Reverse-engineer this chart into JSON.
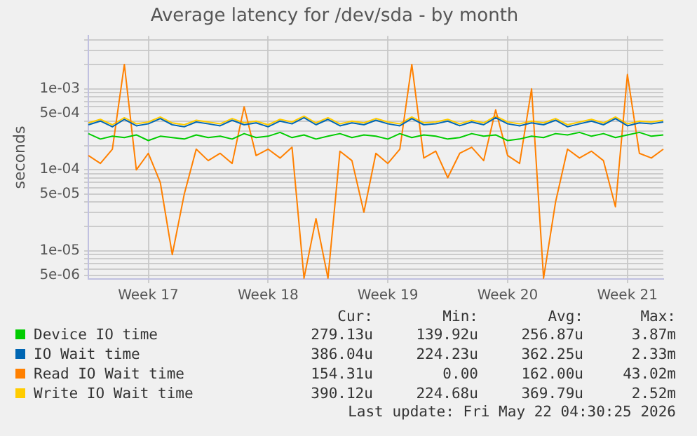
{
  "chart_data": {
    "type": "line",
    "title": "Average latency for /dev/sda - by month",
    "ylabel": "seconds",
    "categories": [
      null,
      null,
      null,
      null,
      null,
      "Week 17",
      null,
      null,
      null,
      null,
      null,
      null,
      null,
      null,
      null,
      "Week 18",
      null,
      null,
      null,
      null,
      null,
      null,
      null,
      null,
      null,
      "Week 19",
      null,
      null,
      null,
      null,
      null,
      null,
      null,
      null,
      null,
      "Week 20",
      null,
      null,
      null,
      null,
      null,
      null,
      null,
      null,
      null,
      "Week 21",
      null,
      null,
      null
    ],
    "series": [
      {
        "name": "Device IO time",
        "color": "#00cc00",
        "values": [
          0.00028,
          0.00024,
          0.00026,
          0.00025,
          0.00027,
          0.00023,
          0.00026,
          0.00025,
          0.00024,
          0.00027,
          0.00025,
          0.00026,
          0.00024,
          0.00028,
          0.00025,
          0.00026,
          0.00029,
          0.00025,
          0.00027,
          0.00024,
          0.00026,
          0.00028,
          0.00025,
          0.00027,
          0.00026,
          0.00024,
          0.00028,
          0.00025,
          0.00027,
          0.00026,
          0.00024,
          0.00025,
          0.00028,
          0.00026,
          0.00027,
          0.00023,
          0.00024,
          0.00026,
          0.00025,
          0.00028,
          0.00027,
          0.00029,
          0.00026,
          0.00028,
          0.00025,
          0.00027,
          0.00029,
          0.00026,
          0.00027
        ]
      },
      {
        "name": "IO Wait time",
        "color": "#0066b3",
        "values": [
          0.00036,
          0.0004,
          0.00034,
          0.00042,
          0.00035,
          0.00037,
          0.00043,
          0.00036,
          0.00034,
          0.00039,
          0.00037,
          0.00035,
          0.00041,
          0.00036,
          0.00038,
          0.00034,
          0.0004,
          0.00037,
          0.00044,
          0.00036,
          0.00042,
          0.00035,
          0.00038,
          0.00036,
          0.00041,
          0.00037,
          0.00035,
          0.00043,
          0.00036,
          0.00037,
          0.0004,
          0.00035,
          0.00039,
          0.00036,
          0.00044,
          0.00037,
          0.00035,
          0.00038,
          0.00036,
          0.00041,
          0.00034,
          0.00037,
          0.0004,
          0.00036,
          0.00043,
          0.00035,
          0.00038,
          0.00037,
          0.00039
        ]
      },
      {
        "name": "Read IO Wait time",
        "color": "#ff8000",
        "values": [
          0.00015,
          0.00012,
          0.00018,
          0.002,
          0.0001,
          0.00016,
          7e-05,
          9e-06,
          5e-05,
          0.00018,
          0.00013,
          0.00016,
          0.00012,
          0.0006,
          0.00015,
          0.00018,
          0.00014,
          0.00019,
          4.6e-06,
          2.5e-05,
          4.6e-06,
          0.00017,
          0.00013,
          3e-05,
          0.00016,
          0.00012,
          0.00018,
          0.002,
          0.00014,
          0.00017,
          8e-05,
          0.00016,
          0.00019,
          0.00013,
          0.00055,
          0.00015,
          0.00012,
          0.001,
          4.6e-06,
          4e-05,
          0.00018,
          0.00014,
          0.00017,
          0.00013,
          3.5e-05,
          0.0015,
          0.00016,
          0.00014,
          0.00018
        ]
      },
      {
        "name": "Write IO Wait time",
        "color": "#ffcc00",
        "values": [
          0.00038,
          0.00042,
          0.00036,
          0.00044,
          0.00037,
          0.00039,
          0.00045,
          0.00038,
          0.00036,
          0.00041,
          0.00039,
          0.00037,
          0.00043,
          0.00038,
          0.0004,
          0.00036,
          0.00042,
          0.00039,
          0.00046,
          0.00038,
          0.00044,
          0.00037,
          0.0004,
          0.00038,
          0.00043,
          0.00039,
          0.00037,
          0.00045,
          0.00038,
          0.00039,
          0.00042,
          0.00037,
          0.00041,
          0.00038,
          0.00046,
          0.00039,
          0.00037,
          0.0004,
          0.00038,
          0.00043,
          0.00036,
          0.00039,
          0.00042,
          0.00038,
          0.00045,
          0.00037,
          0.0004,
          0.00039,
          0.00041
        ]
      }
    ],
    "log": "y",
    "grid": true,
    "legend": "bottom",
    "ylim": [
      4.5e-06,
      0.0045
    ],
    "yticks": [
      {
        "value": 5e-06,
        "label": "5e-06"
      },
      {
        "value": 6e-06,
        "label": null
      },
      {
        "value": 7e-06,
        "label": null
      },
      {
        "value": 8e-06,
        "label": null
      },
      {
        "value": 9e-06,
        "label": null
      },
      {
        "value": 1e-05,
        "label": "1e-05"
      },
      {
        "value": 2e-05,
        "label": null
      },
      {
        "value": 3e-05,
        "label": null
      },
      {
        "value": 4e-05,
        "label": null
      },
      {
        "value": 5e-05,
        "label": "5e-05"
      },
      {
        "value": 6e-05,
        "label": null
      },
      {
        "value": 7e-05,
        "label": null
      },
      {
        "value": 8e-05,
        "label": null
      },
      {
        "value": 9e-05,
        "label": null
      },
      {
        "value": 0.0001,
        "label": "1e-04"
      },
      {
        "value": 0.0002,
        "label": null
      },
      {
        "value": 0.0003,
        "label": null
      },
      {
        "value": 0.0004,
        "label": null
      },
      {
        "value": 0.0005,
        "label": "5e-04"
      },
      {
        "value": 0.0006,
        "label": null
      },
      {
        "value": 0.0007,
        "label": null
      },
      {
        "value": 0.0008,
        "label": null
      },
      {
        "value": 0.0009,
        "label": null
      },
      {
        "value": 0.001,
        "label": "1e-03"
      },
      {
        "value": 0.002,
        "label": null
      },
      {
        "value": 0.003,
        "label": null
      },
      {
        "value": 0.004,
        "label": null
      }
    ],
    "annotations": [
      "Cur:",
      "Min:",
      "Avg:",
      "Max:",
      "279.13u",
      "139.92u",
      "256.87u",
      "3.87m",
      "386.04u",
      "224.23u",
      "362.25u",
      "2.33m",
      "154.31u",
      "0.00",
      "162.00u",
      "43.02m",
      "390.12u",
      "224.68u",
      "369.79u",
      "2.52m",
      "Last update: Fri May 22 04:30:25 2026"
    ]
  }
}
